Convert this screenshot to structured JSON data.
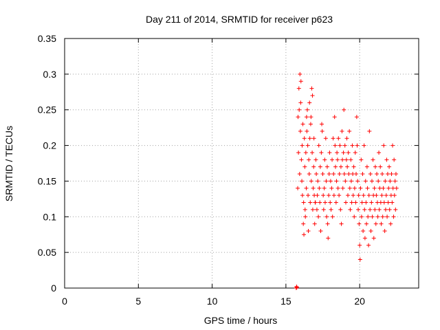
{
  "chart_data": {
    "type": "scatter",
    "title": "Day 211 of 2014, SRMTID for receiver p623",
    "xlabel": "GPS time / hours",
    "ylabel": "SRMTID / TECUs",
    "xlim": [
      0,
      24
    ],
    "ylim": [
      0,
      0.35
    ],
    "x_ticks": [
      0,
      5,
      10,
      15,
      20
    ],
    "x_tick_labels": [
      "0",
      "5",
      "10",
      "15",
      "20"
    ],
    "y_ticks": [
      0,
      0.05,
      0.1,
      0.15,
      0.2,
      0.25,
      0.3,
      0.35
    ],
    "y_tick_labels": [
      "0",
      "0.05",
      "0.1",
      "0.15",
      "0.2",
      "0.25",
      "0.3",
      "0.35"
    ],
    "grid": true,
    "marker": "+",
    "color": "#ff0000",
    "series": [
      {
        "x": [
          15.7,
          15.72,
          15.74,
          15.8,
          15.82,
          15.85,
          15.88,
          15.9,
          15.93,
          15.95,
          15.98,
          16.0,
          16.02,
          16.05,
          16.08,
          16.1,
          16.12,
          16.15,
          16.18,
          16.2,
          16.22,
          16.25,
          16.28,
          16.3,
          16.32,
          16.35,
          16.38,
          16.4,
          16.42,
          16.45,
          16.48,
          16.5,
          16.52,
          16.55,
          16.58,
          16.6,
          16.62,
          16.65,
          16.68,
          16.7,
          16.72,
          16.75,
          16.78,
          16.8,
          16.82,
          16.85,
          16.88,
          16.9,
          16.92,
          16.95,
          16.98,
          17.0,
          17.03,
          17.06,
          17.1,
          17.13,
          17.16,
          17.2,
          17.23,
          17.26,
          17.3,
          17.33,
          17.36,
          17.4,
          17.43,
          17.46,
          17.5,
          17.53,
          17.56,
          17.6,
          17.63,
          17.66,
          17.7,
          17.73,
          17.76,
          17.8,
          17.83,
          17.86,
          17.9,
          17.93,
          17.96,
          18.0,
          18.03,
          18.06,
          18.1,
          18.13,
          18.16,
          18.2,
          18.23,
          18.26,
          18.3,
          18.33,
          18.36,
          18.4,
          18.43,
          18.46,
          18.5,
          18.53,
          18.56,
          18.6,
          18.63,
          18.66,
          18.7,
          18.73,
          18.76,
          18.8,
          18.83,
          18.86,
          18.9,
          18.93,
          18.96,
          19.0,
          19.03,
          19.06,
          19.1,
          19.13,
          19.16,
          19.2,
          19.23,
          19.26,
          19.3,
          19.33,
          19.36,
          19.4,
          19.43,
          19.46,
          19.5,
          19.53,
          19.56,
          19.6,
          19.63,
          19.66,
          19.7,
          19.73,
          19.76,
          19.8,
          19.83,
          19.86,
          19.9,
          19.93,
          19.96,
          20.0,
          20.03,
          20.06,
          20.1,
          20.13,
          20.16,
          20.2,
          20.23,
          20.26,
          20.3,
          20.33,
          20.36,
          20.4,
          20.43,
          20.46,
          20.5,
          20.53,
          20.56,
          20.6,
          20.63,
          20.66,
          20.7,
          20.73,
          20.76,
          20.8,
          20.83,
          20.86,
          20.9,
          20.93,
          20.96,
          21.0,
          21.03,
          21.06,
          21.1,
          21.13,
          21.16,
          21.2,
          21.23,
          21.26,
          21.3,
          21.33,
          21.36,
          21.4,
          21.43,
          21.46,
          21.5,
          21.53,
          21.56,
          21.6,
          21.63,
          21.66,
          21.7,
          21.73,
          21.76,
          21.8,
          21.83,
          21.86,
          21.9,
          21.93,
          21.96,
          22.0,
          22.03,
          22.06,
          22.1,
          22.13,
          22.16,
          22.2,
          22.23,
          22.26,
          22.3,
          22.33,
          22.36,
          22.4,
          22.43,
          22.46,
          22.5
        ],
        "y": [
          0.0,
          0.002,
          0.001,
          0.14,
          0.24,
          0.19,
          0.28,
          0.25,
          0.16,
          0.3,
          0.22,
          0.26,
          0.29,
          0.18,
          0.15,
          0.2,
          0.13,
          0.23,
          0.09,
          0.12,
          0.075,
          0.21,
          0.17,
          0.11,
          0.1,
          0.19,
          0.14,
          0.24,
          0.22,
          0.25,
          0.2,
          0.13,
          0.08,
          0.18,
          0.16,
          0.26,
          0.21,
          0.12,
          0.23,
          0.24,
          0.15,
          0.28,
          0.19,
          0.27,
          0.11,
          0.14,
          0.17,
          0.21,
          0.13,
          0.09,
          0.12,
          0.12,
          0.18,
          0.16,
          0.11,
          0.13,
          0.15,
          0.1,
          0.2,
          0.14,
          0.12,
          0.17,
          0.08,
          0.19,
          0.23,
          0.22,
          0.16,
          0.13,
          0.11,
          0.14,
          0.18,
          0.12,
          0.21,
          0.15,
          0.1,
          0.17,
          0.09,
          0.07,
          0.13,
          0.16,
          0.19,
          0.12,
          0.15,
          0.11,
          0.14,
          0.18,
          0.1,
          0.21,
          0.16,
          0.13,
          0.24,
          0.2,
          0.17,
          0.12,
          0.15,
          0.19,
          0.18,
          0.14,
          0.21,
          0.13,
          0.16,
          0.2,
          0.11,
          0.17,
          0.09,
          0.22,
          0.18,
          0.14,
          0.19,
          0.25,
          0.16,
          0.2,
          0.15,
          0.12,
          0.18,
          0.21,
          0.17,
          0.13,
          0.19,
          0.16,
          0.22,
          0.14,
          0.11,
          0.18,
          0.15,
          0.12,
          0.2,
          0.16,
          0.13,
          0.17,
          0.1,
          0.14,
          0.19,
          0.12,
          0.16,
          0.24,
          0.2,
          0.15,
          0.11,
          0.13,
          0.09,
          0.06,
          0.04,
          0.14,
          0.18,
          0.1,
          0.12,
          0.16,
          0.08,
          0.13,
          0.2,
          0.11,
          0.07,
          0.15,
          0.12,
          0.09,
          0.17,
          0.14,
          0.1,
          0.06,
          0.13,
          0.22,
          0.11,
          0.16,
          0.08,
          0.12,
          0.15,
          0.1,
          0.18,
          0.13,
          0.07,
          0.14,
          0.11,
          0.17,
          0.09,
          0.13,
          0.16,
          0.12,
          0.1,
          0.15,
          0.19,
          0.11,
          0.14,
          0.17,
          0.12,
          0.09,
          0.13,
          0.16,
          0.1,
          0.14,
          0.2,
          0.12,
          0.08,
          0.15,
          0.11,
          0.13,
          0.18,
          0.1,
          0.16,
          0.12,
          0.14,
          0.17,
          0.11,
          0.15,
          0.09,
          0.13,
          0.16,
          0.12,
          0.2,
          0.14,
          0.1,
          0.18,
          0.13,
          0.15,
          0.11,
          0.16,
          0.14
        ]
      }
    ]
  }
}
